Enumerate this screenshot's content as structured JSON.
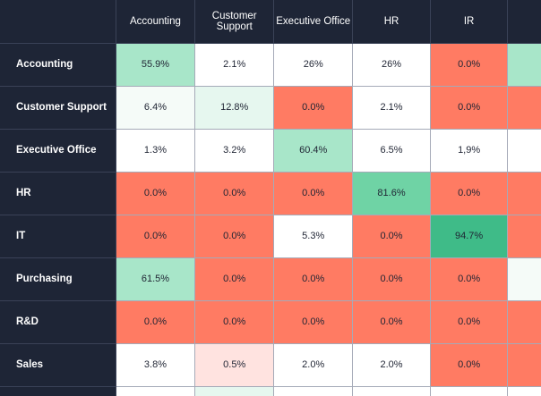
{
  "columns": [
    "Accounting",
    "Customer Support",
    "Executive Office",
    "HR",
    "IR"
  ],
  "rows": [
    {
      "label": "Accounting",
      "cells": [
        {
          "value": "55.9%",
          "color": "#a8e6c9"
        },
        {
          "value": "2.1%",
          "color": "#ffffff"
        },
        {
          "value": "26%",
          "color": "#ffffff"
        },
        {
          "value": "26%",
          "color": "#ffffff"
        },
        {
          "value": "0.0%",
          "color": "#ff7b63"
        }
      ],
      "overflow_color": "#a8e6c9"
    },
    {
      "label": "Customer Support",
      "cells": [
        {
          "value": "6.4%",
          "color": "#f5fbf8"
        },
        {
          "value": "12.8%",
          "color": "#e6f7ef"
        },
        {
          "value": "0.0%",
          "color": "#ff7b63"
        },
        {
          "value": "2.1%",
          "color": "#ffffff"
        },
        {
          "value": "0.0%",
          "color": "#ff7b63"
        }
      ],
      "overflow_color": "#ff7b63"
    },
    {
      "label": "Executive Office",
      "cells": [
        {
          "value": "1.3%",
          "color": "#ffffff"
        },
        {
          "value": "3.2%",
          "color": "#ffffff"
        },
        {
          "value": "60.4%",
          "color": "#a8e6c9"
        },
        {
          "value": "6.5%",
          "color": "#ffffff"
        },
        {
          "value": "1,9%",
          "color": "#ffffff"
        }
      ],
      "overflow_color": "#ffffff"
    },
    {
      "label": "HR",
      "cells": [
        {
          "value": "0.0%",
          "color": "#ff7b63"
        },
        {
          "value": "0.0%",
          "color": "#ff7b63"
        },
        {
          "value": "0.0%",
          "color": "#ff7b63"
        },
        {
          "value": "81.6%",
          "color": "#6fd3a5"
        },
        {
          "value": "0.0%",
          "color": "#ff7b63"
        }
      ],
      "overflow_color": "#ff7b63"
    },
    {
      "label": "IT",
      "cells": [
        {
          "value": "0.0%",
          "color": "#ff7b63"
        },
        {
          "value": "0.0%",
          "color": "#ff7b63"
        },
        {
          "value": "5.3%",
          "color": "#ffffff"
        },
        {
          "value": "0.0%",
          "color": "#ff7b63"
        },
        {
          "value": "94.7%",
          "color": "#3fbb88"
        }
      ],
      "overflow_color": "#ff7b63"
    },
    {
      "label": "Purchasing",
      "cells": [
        {
          "value": "61.5%",
          "color": "#a8e6c9"
        },
        {
          "value": "0.0%",
          "color": "#ff7b63"
        },
        {
          "value": "0.0%",
          "color": "#ff7b63"
        },
        {
          "value": "0.0%",
          "color": "#ff7b63"
        },
        {
          "value": "0.0%",
          "color": "#ff7b63"
        }
      ],
      "overflow_color": "#f5fbf8"
    },
    {
      "label": "R&D",
      "cells": [
        {
          "value": "0.0%",
          "color": "#ff7b63"
        },
        {
          "value": "0.0%",
          "color": "#ff7b63"
        },
        {
          "value": "0.0%",
          "color": "#ff7b63"
        },
        {
          "value": "0.0%",
          "color": "#ff7b63"
        },
        {
          "value": "0.0%",
          "color": "#ff7b63"
        }
      ],
      "overflow_color": "#ff7b63"
    },
    {
      "label": "Sales",
      "cells": [
        {
          "value": "3.8%",
          "color": "#ffffff"
        },
        {
          "value": "0.5%",
          "color": "#ffe3e0"
        },
        {
          "value": "2.0%",
          "color": "#ffffff"
        },
        {
          "value": "2.0%",
          "color": "#ffffff"
        },
        {
          "value": "0.0%",
          "color": "#ff7b63"
        }
      ],
      "overflow_color": "#ff7b63"
    },
    {
      "label": "",
      "cells": [
        {
          "value": "",
          "color": "#ffffff"
        },
        {
          "value": "",
          "color": "#e6f7ef"
        },
        {
          "value": "",
          "color": "#ffffff"
        },
        {
          "value": "",
          "color": "#ffffff"
        },
        {
          "value": "",
          "color": "#ffffff"
        }
      ],
      "overflow_color": "#ffffff"
    }
  ]
}
